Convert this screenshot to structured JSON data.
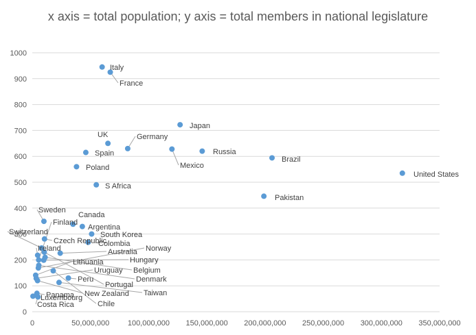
{
  "chart_data": {
    "type": "scatter",
    "title": "x axis = total population; y axis = total members in national legislature",
    "xlabel": "",
    "ylabel": "",
    "xlim": [
      0,
      350000000
    ],
    "ylim": [
      0,
      1000
    ],
    "x_ticks": [
      "0",
      "50,000,000",
      "100,000,000",
      "150,000,000",
      "200,000,000",
      "250,000,000",
      "300,000,000",
      "350,000,000"
    ],
    "y_ticks": [
      "0",
      "100",
      "200",
      "300",
      "400",
      "500",
      "600",
      "700",
      "800",
      "900",
      "1000"
    ],
    "grid": "horizontal",
    "marker_color": "#5b9bd5",
    "points": [
      {
        "label": "Italy",
        "x": 60000000,
        "y": 945
      },
      {
        "label": "France",
        "x": 67000000,
        "y": 925
      },
      {
        "label": "Japan",
        "x": 127000000,
        "y": 722
      },
      {
        "label": "UK",
        "x": 65000000,
        "y": 650
      },
      {
        "label": "Germany",
        "x": 82000000,
        "y": 630
      },
      {
        "label": "Mexico",
        "x": 120000000,
        "y": 628
      },
      {
        "label": "Russia",
        "x": 146000000,
        "y": 620
      },
      {
        "label": "Spain",
        "x": 46000000,
        "y": 615
      },
      {
        "label": "Brazil",
        "x": 206000000,
        "y": 594
      },
      {
        "label": "Poland",
        "x": 38000000,
        "y": 560
      },
      {
        "label": "United States",
        "x": 318000000,
        "y": 535
      },
      {
        "label": "S Africa",
        "x": 55000000,
        "y": 490
      },
      {
        "label": "Pakistan",
        "x": 199000000,
        "y": 446
      },
      {
        "label": "Sweden",
        "x": 10000000,
        "y": 349
      },
      {
        "label": "Canada",
        "x": 35000000,
        "y": 338
      },
      {
        "label": "Finland",
        "x": 5500000,
        "y": 200
      },
      {
        "label": "Argentina",
        "x": 43000000,
        "y": 329
      },
      {
        "label": "Switzerland",
        "x": 8000000,
        "y": 246
      },
      {
        "label": "South Korea",
        "x": 51000000,
        "y": 300
      },
      {
        "label": "Czech Republic",
        "x": 10500000,
        "y": 281
      },
      {
        "label": "Colombia",
        "x": 48000000,
        "y": 268
      },
      {
        "label": "Ireland",
        "x": 4600000,
        "y": 218
      },
      {
        "label": "Australia",
        "x": 24000000,
        "y": 226
      },
      {
        "label": "Norway",
        "x": 5200000,
        "y": 169
      },
      {
        "label": "Lithuania",
        "x": 2900000,
        "y": 141
      },
      {
        "label": "Hungary",
        "x": 9800000,
        "y": 199
      },
      {
        "label": "Uruguay",
        "x": 3400000,
        "y": 129
      },
      {
        "label": "Belgium",
        "x": 11000000,
        "y": 210
      },
      {
        "label": "Peru",
        "x": 31000000,
        "y": 130
      },
      {
        "label": "Denmark",
        "x": 5600000,
        "y": 179
      },
      {
        "label": "Portugal",
        "x": 10300000,
        "y": 230
      },
      {
        "label": "Taiwan",
        "x": 23000000,
        "y": 113
      },
      {
        "label": "New Zealand",
        "x": 4500000,
        "y": 120
      },
      {
        "label": "Panama",
        "x": 4000000,
        "y": 71
      },
      {
        "label": "Luxembourg",
        "x": 600000,
        "y": 60
      },
      {
        "label": "Chile",
        "x": 18000000,
        "y": 158
      },
      {
        "label": "Costa Rica",
        "x": 4900000,
        "y": 57
      }
    ]
  }
}
